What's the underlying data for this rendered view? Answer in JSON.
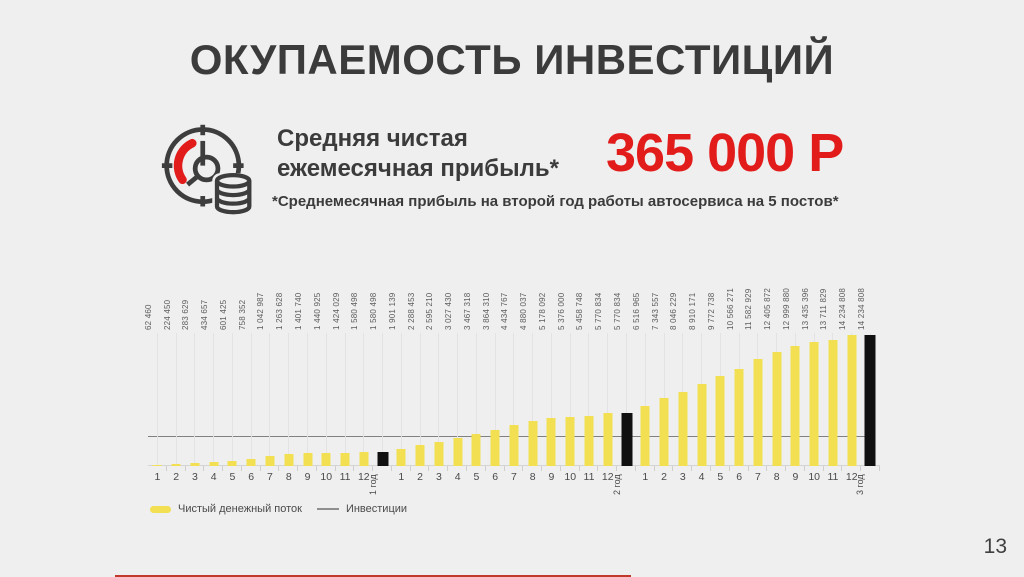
{
  "slide": {
    "title": "ОКУПАЕМОСТЬ ИНВЕСТИЦИЙ",
    "page_number": "13"
  },
  "profit": {
    "icon": "clock-coins-icon",
    "label_line1": "Средняя чистая",
    "label_line2": "ежемесячная прибыль*",
    "value": "365 000 Р",
    "footnote": "*Среднемесячная прибыль на второй год работы автосервиса на 5 постов*"
  },
  "chart_data": {
    "type": "bar",
    "title": "",
    "xlabel": "",
    "ylabel": "",
    "ylim": [
      0,
      14234808
    ],
    "grid": true,
    "legend_position": "bottom-left",
    "series_name": "Чистый денежный поток",
    "categories": [
      "1",
      "2",
      "3",
      "4",
      "5",
      "6",
      "7",
      "8",
      "9",
      "10",
      "11",
      "12",
      "1 год",
      "1",
      "2",
      "3",
      "4",
      "5",
      "6",
      "7",
      "8",
      "9",
      "10",
      "11",
      "12",
      "2 год",
      "1",
      "2",
      "3",
      "4",
      "5",
      "6",
      "7",
      "8",
      "9",
      "10",
      "11",
      "12",
      "3 год"
    ],
    "values": [
      62460,
      224450,
      283629,
      434657,
      601425,
      758352,
      1042987,
      1263628,
      1401740,
      1440925,
      1424029,
      1580498,
      1580498,
      1901139,
      2288453,
      2595210,
      3027430,
      3467318,
      3864310,
      4434767,
      4880037,
      5178092,
      5376000,
      5458748,
      5770834,
      5770834,
      6516965,
      7343557,
      8046229,
      8910171,
      9772738,
      10566271,
      11582929,
      12405872,
      12999880,
      13435396,
      13711829,
      14234808,
      14234808
    ],
    "value_labels": [
      "62 460",
      "224 450",
      "283 629",
      "434 657",
      "601 425",
      "758 352",
      "1 042 987",
      "1 263 628",
      "1 401 740",
      "1 440 925",
      "1 424 029",
      "1 580 498",
      "1 580 498",
      "1 901 139",
      "2 288 453",
      "2 595 210",
      "3 027 430",
      "3 467 318",
      "3 864 310",
      "4 434 767",
      "4 880 037",
      "5 178 092",
      "5 376 000",
      "5 458 748",
      "5 770 834",
      "5 770 834",
      "6 516 965",
      "7 343 557",
      "8 046 229",
      "8 910 171",
      "9 772 738",
      "10 566 271",
      "11 582 929",
      "12 405 872",
      "12 999 880",
      "13 435 396",
      "13 711 829",
      "14 234 808",
      "14 234 808"
    ],
    "year_total_categories": [
      "1 год",
      "2 год",
      "3 год"
    ],
    "investment_line": {
      "label": "Инвестиции",
      "value": 3200000
    },
    "legend": [
      {
        "label": "Чистый денежный поток",
        "swatch": "bar",
        "color": "#F2DF52"
      },
      {
        "label": "Инвестиции",
        "swatch": "line",
        "color": "#8F8F8F"
      }
    ],
    "bar_colors": {
      "month": "#F2DF52",
      "year_total": "#101010"
    }
  },
  "colors": {
    "background": "#EFEFEF",
    "title_text": "#3B3B3B",
    "accent_red": "#E21B1B",
    "gridline": "#E3E3E3",
    "axis": "#D4D4D4",
    "footer_line_red": "#C0392B"
  }
}
